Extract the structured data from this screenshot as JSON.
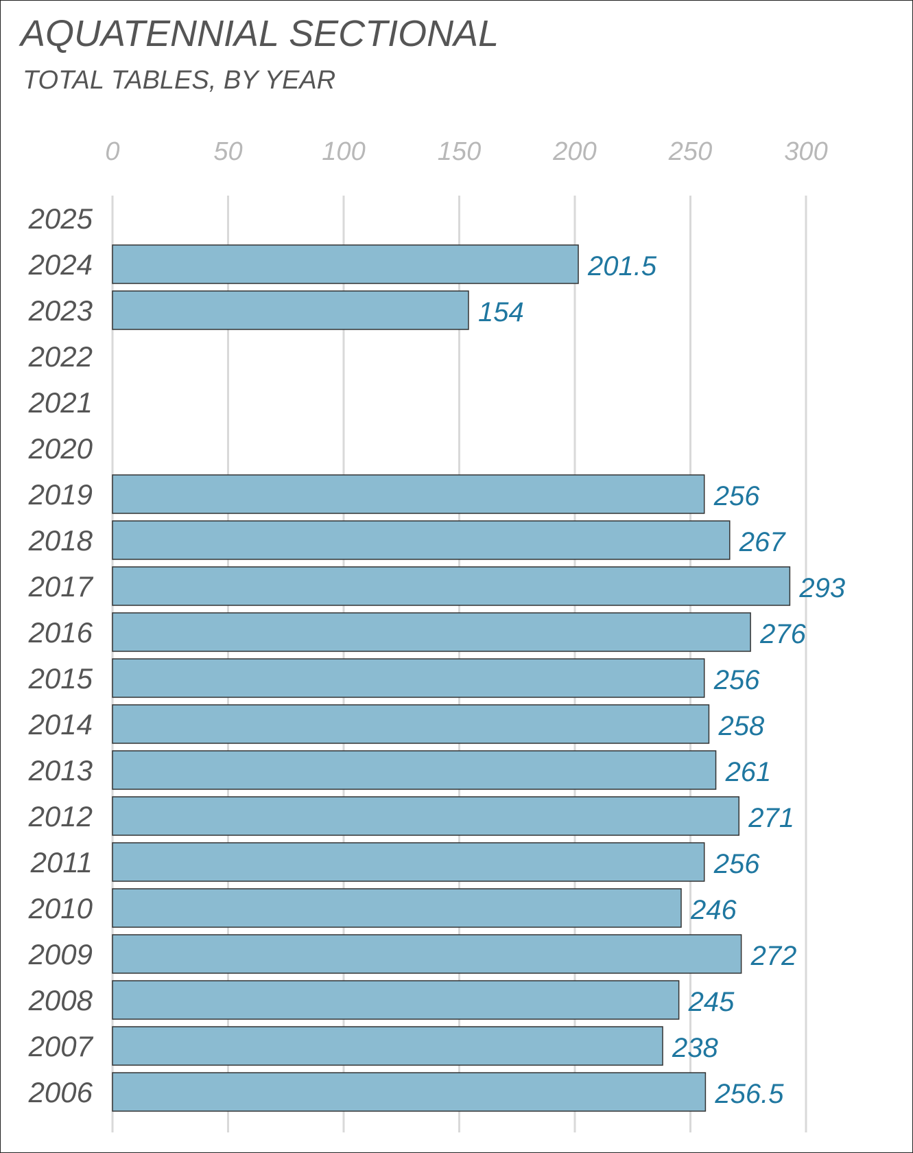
{
  "chart_data": {
    "type": "bar",
    "orientation": "horizontal",
    "title": "AQUATENNIAL SECTIONAL",
    "subtitle": "TOTAL TABLES, BY YEAR",
    "categories": [
      "2025",
      "2024",
      "2023",
      "2022",
      "2021",
      "2020",
      "2019",
      "2018",
      "2017",
      "2016",
      "2015",
      "2014",
      "2013",
      "2012",
      "2011",
      "2010",
      "2009",
      "2008",
      "2007",
      "2006"
    ],
    "values": [
      null,
      201.5,
      154,
      null,
      null,
      null,
      256,
      267,
      293,
      276,
      256,
      258,
      261,
      271,
      256,
      246,
      272,
      245,
      238,
      256.5
    ],
    "value_labels": [
      "",
      "201.5",
      "154",
      "",
      "",
      "",
      "256",
      "267",
      "293",
      "276",
      "256",
      "258",
      "261",
      "271",
      "256",
      "246",
      "272",
      "245",
      "238",
      "256.5"
    ],
    "xlim": [
      0,
      300
    ],
    "x_ticks": [
      "0",
      "50",
      "100",
      "150",
      "200",
      "250",
      "300"
    ],
    "x_axis_position": "top",
    "grid": true,
    "legend": "none",
    "colors": {
      "bar_fill": "#8bbbd1",
      "bar_stroke": "#333333",
      "value_label": "#1f77a0",
      "category_label": "#555555",
      "tick_label": "#b8b8b8",
      "gridline": "#d9d9d9"
    }
  }
}
